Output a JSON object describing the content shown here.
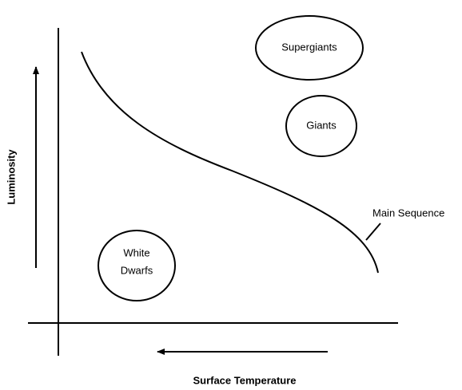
{
  "diagram": {
    "y_axis_label": "Luminosity",
    "x_axis_label": "Surface Temperature",
    "regions": [
      {
        "lines": [
          "Supergiants"
        ]
      },
      {
        "lines": [
          "Giants"
        ]
      },
      {
        "lines": [
          "White",
          "Dwarfs"
        ]
      }
    ],
    "curve_label": "Main Sequence"
  }
}
